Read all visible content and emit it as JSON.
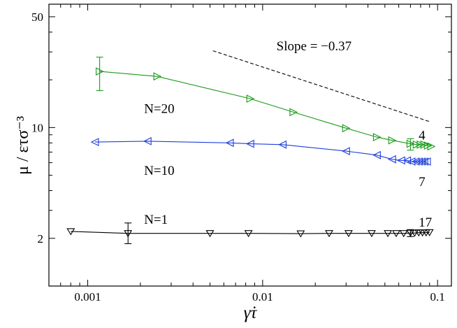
{
  "chart_data": {
    "type": "line",
    "x_scale": "log",
    "y_scale": "log",
    "xlim": [
      0.0006,
      0.12
    ],
    "ylim": [
      1.0,
      60.0
    ],
    "xlabel": "γ̇τ",
    "ylabel": "μ / ετσ⁻³",
    "x_ticks": [
      {
        "value": 0.001,
        "label": "0.001"
      },
      {
        "value": 0.01,
        "label": "0.01"
      },
      {
        "value": 0.1,
        "label": "0.1"
      }
    ],
    "y_ticks": [
      {
        "value": 2,
        "label": "2"
      },
      {
        "value": 10,
        "label": "10"
      },
      {
        "value": 50,
        "label": "50"
      }
    ],
    "grid": false,
    "series": [
      {
        "name": "N=20",
        "color": "#1a9a1a",
        "marker": "triangle-right",
        "x": [
          0.00117,
          0.0025,
          0.0085,
          0.015,
          0.03,
          0.045,
          0.055,
          0.07,
          0.076,
          0.08,
          0.084,
          0.088,
          0.092
        ],
        "y": [
          22.6,
          21.0,
          15.2,
          12.5,
          9.9,
          8.7,
          8.3,
          7.9,
          7.8,
          7.8,
          7.8,
          7.7,
          7.6
        ],
        "error_bars": [
          {
            "x": 0.00117,
            "y": 22.6,
            "low": 17.1,
            "high": 27.8
          },
          {
            "x": 0.07,
            "y": 7.9,
            "low": 7.2,
            "high": 8.5
          }
        ]
      },
      {
        "name": "N=10",
        "color": "#1f3fdc",
        "marker": "triangle-left",
        "x": [
          0.0011,
          0.0022,
          0.0065,
          0.0085,
          0.013,
          0.03,
          0.045,
          0.055,
          0.062,
          0.067,
          0.071,
          0.075,
          0.078,
          0.081,
          0.084,
          0.087
        ],
        "y": [
          8.1,
          8.2,
          8.0,
          7.9,
          7.8,
          7.1,
          6.7,
          6.3,
          6.2,
          6.2,
          6.1,
          6.1,
          6.1,
          6.1,
          6.1,
          6.1
        ]
      },
      {
        "name": "N=1",
        "color": "#000000",
        "marker": "triangle-down",
        "x": [
          0.0008,
          0.0017,
          0.005,
          0.0083,
          0.0165,
          0.024,
          0.031,
          0.042,
          0.052,
          0.058,
          0.064,
          0.07,
          0.074,
          0.078,
          0.082,
          0.086,
          0.09
        ],
        "y": [
          2.21,
          2.15,
          2.15,
          2.15,
          2.14,
          2.15,
          2.15,
          2.15,
          2.15,
          2.15,
          2.15,
          2.16,
          2.16,
          2.17,
          2.17,
          2.17,
          2.18
        ],
        "error_bars": [
          {
            "x": 0.0017,
            "y": 2.15,
            "low": 1.85,
            "high": 2.5
          },
          {
            "x": 0.07,
            "y": 2.16,
            "low": 2.05,
            "high": 2.27
          }
        ]
      }
    ],
    "reference_line": {
      "label": "Slope = −0.37",
      "slope": -0.37,
      "x": [
        0.0052,
        0.09
      ],
      "y": [
        30.5,
        10.9
      ]
    },
    "annotations": [
      {
        "text": "N=20",
        "x": 0.0021,
        "y": 13.3
      },
      {
        "text": "N=10",
        "x": 0.0021,
        "y": 5.4
      },
      {
        "text": "N=1",
        "x": 0.0021,
        "y": 2.65
      },
      {
        "text": "4",
        "x": 0.078,
        "y": 9.0
      },
      {
        "text": "7",
        "x": 0.078,
        "y": 4.6
      },
      {
        "text": "17",
        "x": 0.078,
        "y": 2.55
      }
    ]
  }
}
